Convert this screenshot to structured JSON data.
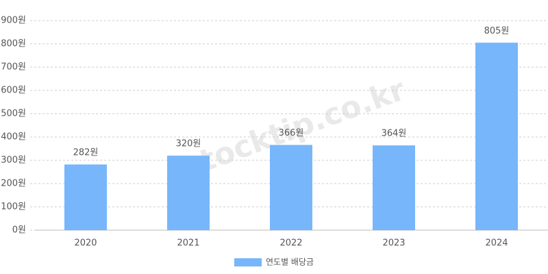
{
  "chart_data": {
    "type": "bar",
    "categories": [
      "2020",
      "2021",
      "2022",
      "2023",
      "2024"
    ],
    "series": [
      {
        "name": "연도별 배당금",
        "color": "#77b6fb",
        "values": [
          282,
          320,
          366,
          364,
          805
        ],
        "value_labels": [
          "282원",
          "320원",
          "366원",
          "364원",
          "805원"
        ]
      }
    ],
    "ylim": [
      0,
      900
    ],
    "yticks": [
      {
        "value": 0,
        "label": "0원"
      },
      {
        "value": 100,
        "label": "100원"
      },
      {
        "value": 200,
        "label": "200원"
      },
      {
        "value": 300,
        "label": "300원"
      },
      {
        "value": 400,
        "label": "400원"
      },
      {
        "value": 500,
        "label": "500원"
      },
      {
        "value": 600,
        "label": "600원"
      },
      {
        "value": 700,
        "label": "700원"
      },
      {
        "value": 800,
        "label": "800원"
      },
      {
        "value": 900,
        "label": "900원"
      }
    ],
    "grid": true,
    "legend": "bottom",
    "watermark": "stocktip.co.kr"
  }
}
